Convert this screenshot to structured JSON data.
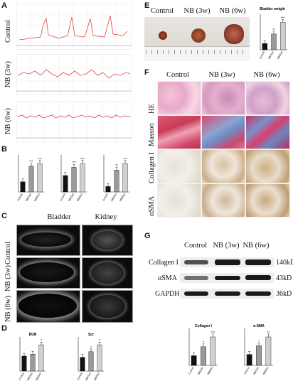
{
  "panels": {
    "A": "A",
    "B": "B",
    "C": "C",
    "D": "D",
    "E": "E",
    "F": "F",
    "G": "G"
  },
  "groups": {
    "control": "Control",
    "nb3w": "NB (3w)",
    "nb6w": "NB (6w)"
  },
  "panelC": {
    "col1": "Bladder",
    "col2": "Kidney"
  },
  "panelF": {
    "rows": [
      "HE",
      "Masson",
      "Collagen I",
      "αSMA"
    ]
  },
  "panelE": {
    "chart_title": "Bladder weight"
  },
  "panelG": {
    "blots": [
      {
        "name": "Collagen I",
        "size": "140kD"
      },
      {
        "name": "αSMA",
        "size": "43kD"
      },
      {
        "name": "GAPDH",
        "size": "36kD"
      }
    ]
  },
  "chart_data": [
    {
      "type": "bar",
      "panel": "B",
      "categories": [
        "Control",
        "NB(3w)",
        "NB(6w)"
      ],
      "values": [
        0.15,
        0.38,
        0.42
      ],
      "significance": [
        "",
        "***",
        "***"
      ]
    },
    {
      "type": "bar",
      "panel": "B",
      "categories": [
        "Control",
        "NB(3w)",
        "NB(6w)"
      ],
      "values": [
        30,
        45,
        52
      ],
      "significance": [
        "",
        "***",
        "***"
      ]
    },
    {
      "type": "bar",
      "panel": "B",
      "categories": [
        "Control",
        "NB(3w)",
        "NB(6w)"
      ],
      "values": [
        0.5,
        2.0,
        2.6
      ],
      "significance": [
        "",
        "**",
        "***"
      ]
    },
    {
      "type": "bar",
      "panel": "D",
      "title": "BUN",
      "categories": [
        "Control",
        "NB(3w)",
        "NB(6w)"
      ],
      "values": [
        8,
        9,
        14
      ],
      "significance": [
        "",
        "",
        "*"
      ]
    },
    {
      "type": "bar",
      "panel": "D",
      "title": "Scr",
      "categories": [
        "Control",
        "NB(3w)",
        "NB(6w)"
      ],
      "values": [
        20,
        28,
        38
      ],
      "significance": [
        "",
        "*",
        "*"
      ]
    },
    {
      "type": "bar",
      "panel": "E",
      "title": "Bladder weight",
      "categories": [
        "Control",
        "NB(3w)",
        "NB(6w)"
      ],
      "values": [
        60,
        150,
        260
      ],
      "significance": [
        "",
        "**",
        "***"
      ]
    },
    {
      "type": "bar",
      "panel": "G",
      "title": "Collagen I",
      "categories": [
        "Control",
        "NB(3w)",
        "NB(6w)"
      ],
      "values": [
        1.0,
        1.9,
        2.9
      ],
      "significance": [
        "",
        "*",
        "***"
      ]
    },
    {
      "type": "bar",
      "panel": "G",
      "title": "α-SMA",
      "categories": [
        "Control",
        "NB(3w)",
        "NB(6w)"
      ],
      "values": [
        1.0,
        1.8,
        2.6
      ],
      "significance": [
        "",
        "*",
        "**"
      ]
    }
  ]
}
